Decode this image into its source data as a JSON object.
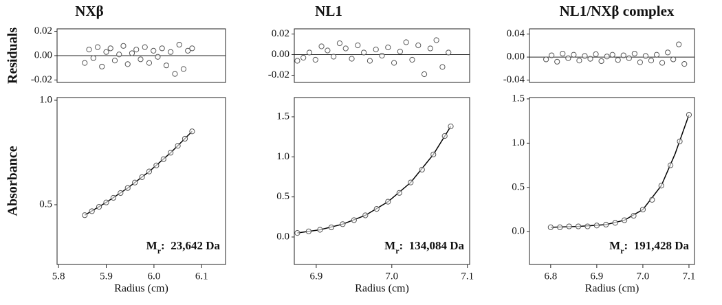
{
  "chart_data": [
    {
      "type": "scatter",
      "title": "NXβ",
      "y_label": "Residuals",
      "zero_line": true,
      "color": "#555555",
      "xlim": [
        5.797,
        6.15
      ],
      "ylim": [
        -0.022,
        0.022
      ],
      "yticks": [
        0.02,
        {
          "value": 0,
          "label": "0.00"
        },
        -0.02
      ],
      "x": [
        5.855,
        5.864,
        5.873,
        5.882,
        5.891,
        5.9,
        5.909,
        5.918,
        5.927,
        5.936,
        5.945,
        5.954,
        5.963,
        5.972,
        5.981,
        5.99,
        5.999,
        6.008,
        6.017,
        6.026,
        6.035,
        6.044,
        6.053,
        6.062,
        6.071,
        6.08
      ],
      "values": [
        -0.006,
        0.005,
        -0.002,
        0.007,
        -0.009,
        0.003,
        0.006,
        -0.004,
        0.001,
        0.008,
        -0.007,
        0.002,
        0.005,
        -0.003,
        0.007,
        -0.006,
        0.004,
        -0.001,
        0.006,
        -0.008,
        0.003,
        -0.015,
        0.009,
        -0.011,
        0.004,
        0.006
      ]
    },
    {
      "type": "scatter",
      "y_label": "Absorbance",
      "x_label": "Radius (cm)",
      "color": "#555555",
      "fit_color": "#000000",
      "xlim": [
        5.797,
        6.15
      ],
      "ylim": [
        0.214,
        1.013
      ],
      "xticks": [
        5.8,
        5.9,
        {
          "value": 6.0,
          "label": "6.0"
        },
        6.1
      ],
      "yticks": [
        {
          "value": 1.0,
          "label": "1.0"
        },
        0.5
      ],
      "x": [
        5.855,
        5.87,
        5.885,
        5.9,
        5.915,
        5.93,
        5.945,
        5.96,
        5.975,
        5.99,
        6.005,
        6.02,
        6.035,
        6.05,
        6.065,
        6.08
      ],
      "values": [
        0.45,
        0.469,
        0.49,
        0.511,
        0.533,
        0.556,
        0.58,
        0.606,
        0.632,
        0.659,
        0.688,
        0.718,
        0.749,
        0.782,
        0.816,
        0.851
      ],
      "fit_x": [
        5.855,
        5.9,
        5.945,
        5.99,
        6.035,
        6.08
      ],
      "fit_values": [
        0.45,
        0.511,
        0.58,
        0.659,
        0.749,
        0.851
      ],
      "annotation": {
        "symbol": "M",
        "subscript": "r",
        "text": ":  23,642 Da"
      }
    },
    {
      "type": "scatter",
      "title": "NL1",
      "zero_line": true,
      "color": "#555555",
      "xlim": [
        6.871,
        7.103
      ],
      "ylim": [
        -0.027,
        0.025
      ],
      "yticks": [
        0.02,
        {
          "value": 0,
          "label": "0.00"
        },
        -0.02
      ],
      "x": [
        6.875,
        6.883,
        6.891,
        6.899,
        6.907,
        6.915,
        6.923,
        6.931,
        6.939,
        6.947,
        6.955,
        6.963,
        6.971,
        6.979,
        6.987,
        6.995,
        7.003,
        7.011,
        7.019,
        7.027,
        7.035,
        7.043,
        7.051,
        7.059,
        7.067,
        7.075
      ],
      "values": [
        -0.006,
        -0.003,
        0.002,
        -0.005,
        0.008,
        0.004,
        -0.002,
        0.011,
        0.006,
        -0.004,
        0.009,
        0.002,
        -0.006,
        0.005,
        -0.001,
        0.007,
        -0.008,
        0.003,
        0.012,
        -0.005,
        0.009,
        -0.019,
        0.006,
        0.014,
        -0.012,
        0.002
      ]
    },
    {
      "type": "scatter",
      "x_label": "Radius (cm)",
      "color": "#555555",
      "fit_color": "#000000",
      "xlim": [
        6.871,
        7.103
      ],
      "ylim": [
        -0.343,
        1.74
      ],
      "xticks": [
        6.9,
        {
          "value": 7.0,
          "label": "7.0"
        },
        7.1
      ],
      "yticks": [
        1.5,
        {
          "value": 1.0,
          "label": "1.0"
        },
        0.5,
        {
          "value": 0,
          "label": "0.0"
        }
      ],
      "x": [
        6.875,
        6.89,
        6.905,
        6.92,
        6.935,
        6.95,
        6.965,
        6.98,
        6.995,
        7.01,
        7.025,
        7.04,
        7.055,
        7.07,
        7.078
      ],
      "values": [
        0.05,
        0.07,
        0.09,
        0.12,
        0.16,
        0.21,
        0.27,
        0.35,
        0.44,
        0.55,
        0.68,
        0.84,
        1.03,
        1.26,
        1.38
      ],
      "fit_x": [
        6.875,
        6.905,
        6.935,
        6.965,
        6.995,
        7.025,
        7.055,
        7.078
      ],
      "fit_values": [
        0.05,
        0.09,
        0.16,
        0.27,
        0.44,
        0.68,
        1.03,
        1.38
      ],
      "annotation": {
        "symbol": "M",
        "subscript": "r",
        "text": ":  134,084 Da"
      }
    },
    {
      "type": "scatter",
      "title": "NL1/NXβ complex",
      "zero_line": true,
      "color": "#555555",
      "xlim": [
        6.754,
        7.112
      ],
      "ylim": [
        -0.044,
        0.049
      ],
      "yticks": [
        0.04,
        {
          "value": 0,
          "label": "0.00"
        },
        -0.04
      ],
      "x": [
        6.79,
        6.802,
        6.814,
        6.826,
        6.838,
        6.85,
        6.862,
        6.874,
        6.886,
        6.898,
        6.91,
        6.922,
        6.934,
        6.946,
        6.958,
        6.97,
        6.982,
        6.994,
        7.006,
        7.018,
        7.03,
        7.042,
        7.054,
        7.066,
        7.078,
        7.09
      ],
      "values": [
        -0.004,
        0.003,
        -0.008,
        0.006,
        -0.002,
        0.004,
        -0.006,
        0.002,
        -0.003,
        0.005,
        -0.007,
        0.001,
        0.004,
        -0.005,
        0.003,
        -0.002,
        0.006,
        -0.009,
        0.002,
        -0.006,
        0.004,
        -0.01,
        0.008,
        -0.004,
        0.022,
        -0.012
      ]
    },
    {
      "type": "scatter",
      "x_label": "Radius (cm)",
      "color": "#555555",
      "fit_color": "#000000",
      "xlim": [
        6.754,
        7.112
      ],
      "ylim": [
        -0.37,
        1.515
      ],
      "xticks": [
        6.8,
        6.9,
        {
          "value": 7.0,
          "label": "7.0"
        },
        7.1
      ],
      "yticks": [
        1.5,
        {
          "value": 1.0,
          "label": "1.0"
        },
        0.5,
        {
          "value": 0,
          "label": "0.0"
        }
      ],
      "x": [
        6.8,
        6.82,
        6.84,
        6.86,
        6.88,
        6.9,
        6.92,
        6.94,
        6.96,
        6.98,
        7.0,
        7.02,
        7.04,
        7.06,
        7.08,
        7.1
      ],
      "values": [
        0.05,
        0.05,
        0.06,
        0.06,
        0.06,
        0.07,
        0.08,
        0.1,
        0.13,
        0.18,
        0.25,
        0.36,
        0.52,
        0.75,
        1.02,
        1.32
      ],
      "fit_x": [
        6.8,
        6.86,
        6.92,
        6.96,
        7.0,
        7.04,
        7.07,
        7.1
      ],
      "fit_values": [
        0.05,
        0.06,
        0.08,
        0.13,
        0.25,
        0.52,
        0.88,
        1.32
      ],
      "annotation": {
        "symbol": "M",
        "subscript": "r",
        "text": ":  191,428 Da"
      }
    }
  ]
}
